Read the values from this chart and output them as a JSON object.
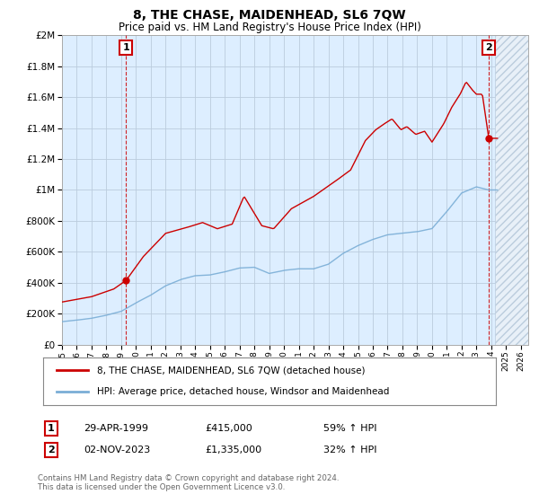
{
  "title": "8, THE CHASE, MAIDENHEAD, SL6 7QW",
  "subtitle": "Price paid vs. HM Land Registry's House Price Index (HPI)",
  "sale1_date": "29-APR-1999",
  "sale1_price": "£415,000",
  "sale1_hpi": "59% ↑ HPI",
  "sale1_year": 1999.33,
  "sale1_value": 415000,
  "sale2_date": "02-NOV-2023",
  "sale2_price": "£1,335,000",
  "sale2_hpi": "32% ↑ HPI",
  "sale2_year": 2023.84,
  "sale2_value": 1335000,
  "legend_line1": "8, THE CHASE, MAIDENHEAD, SL6 7QW (detached house)",
  "legend_line2": "HPI: Average price, detached house, Windsor and Maidenhead",
  "footer": "Contains HM Land Registry data © Crown copyright and database right 2024.\nThis data is licensed under the Open Government Licence v3.0.",
  "red_color": "#cc0000",
  "blue_color": "#7aaed6",
  "chart_bg": "#ddeeff",
  "background_color": "#ffffff",
  "grid_color": "#bbccdd",
  "ylim": [
    0,
    2000000
  ],
  "xlim_start": 1995.0,
  "xlim_end": 2026.5,
  "hpi_anchors_years": [
    1995.0,
    1996.0,
    1997.0,
    1998.0,
    1999.0,
    2000.0,
    2001.0,
    2002.0,
    2003.0,
    2004.0,
    2005.0,
    2006.0,
    2007.0,
    2008.0,
    2009.0,
    2010.0,
    2011.0,
    2012.0,
    2013.0,
    2014.0,
    2015.0,
    2016.0,
    2017.0,
    2018.0,
    2019.0,
    2020.0,
    2021.0,
    2022.0,
    2023.0,
    2023.84,
    2024.3
  ],
  "hpi_anchors_vals": [
    148000,
    158000,
    170000,
    190000,
    215000,
    270000,
    320000,
    380000,
    420000,
    445000,
    450000,
    470000,
    495000,
    500000,
    460000,
    480000,
    490000,
    490000,
    520000,
    590000,
    640000,
    680000,
    710000,
    720000,
    730000,
    750000,
    860000,
    980000,
    1020000,
    1000000,
    1000000
  ],
  "prop_anchors_years": [
    1995.0,
    1997.0,
    1998.5,
    1999.33,
    2000.5,
    2002.0,
    2003.5,
    2004.5,
    2005.5,
    2006.5,
    2007.3,
    2008.5,
    2009.3,
    2010.5,
    2012.0,
    2013.5,
    2014.5,
    2015.5,
    2016.2,
    2016.8,
    2017.3,
    2017.9,
    2018.3,
    2018.9,
    2019.5,
    2020.0,
    2020.8,
    2021.3,
    2021.9,
    2022.3,
    2022.7,
    2023.0,
    2023.4,
    2023.84
  ],
  "prop_anchors_vals": [
    275000,
    310000,
    360000,
    415000,
    570000,
    720000,
    760000,
    790000,
    750000,
    780000,
    960000,
    770000,
    750000,
    880000,
    960000,
    1060000,
    1130000,
    1320000,
    1390000,
    1430000,
    1460000,
    1390000,
    1410000,
    1360000,
    1380000,
    1310000,
    1430000,
    1530000,
    1620000,
    1700000,
    1650000,
    1620000,
    1620000,
    1335000
  ]
}
